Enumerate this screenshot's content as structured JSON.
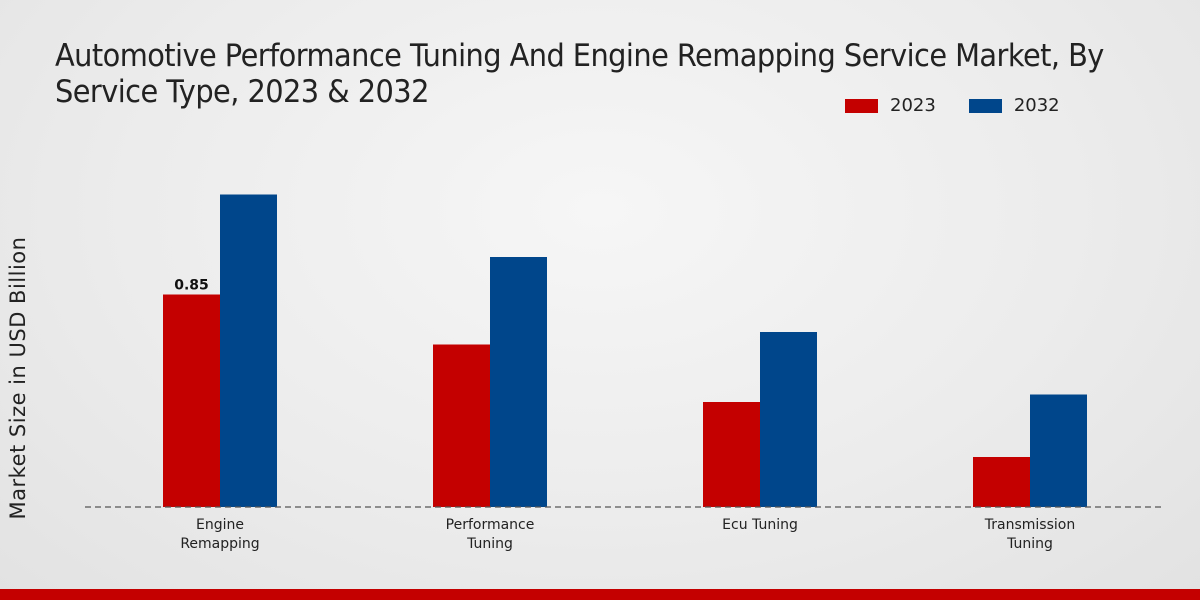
{
  "chart_data": {
    "type": "bar",
    "title": "Automotive Performance Tuning And Engine Remapping Service Market, By Service Type, 2023 & 2032",
    "xlabel": "",
    "ylabel": "Market Size in USD Billion",
    "categories": [
      [
        "Engine",
        "Remapping"
      ],
      [
        "Performance",
        "Tuning"
      ],
      [
        "Ecu Tuning"
      ],
      [
        "Transmission",
        "Tuning"
      ]
    ],
    "series": [
      {
        "name": "2023",
        "color": "#c40000",
        "values": [
          0.85,
          0.65,
          0.42,
          0.2
        ]
      },
      {
        "name": "2032",
        "color": "#00468b",
        "values": [
          1.25,
          1.0,
          0.7,
          0.45
        ]
      }
    ],
    "data_labels": [
      {
        "series": 0,
        "index": 0,
        "text": "0.85"
      }
    ],
    "ylim": [
      0,
      1.4
    ],
    "legend_position": "top-right",
    "grid": false
  },
  "colors": {
    "accent": "#c40000",
    "baseline": "#555555"
  }
}
